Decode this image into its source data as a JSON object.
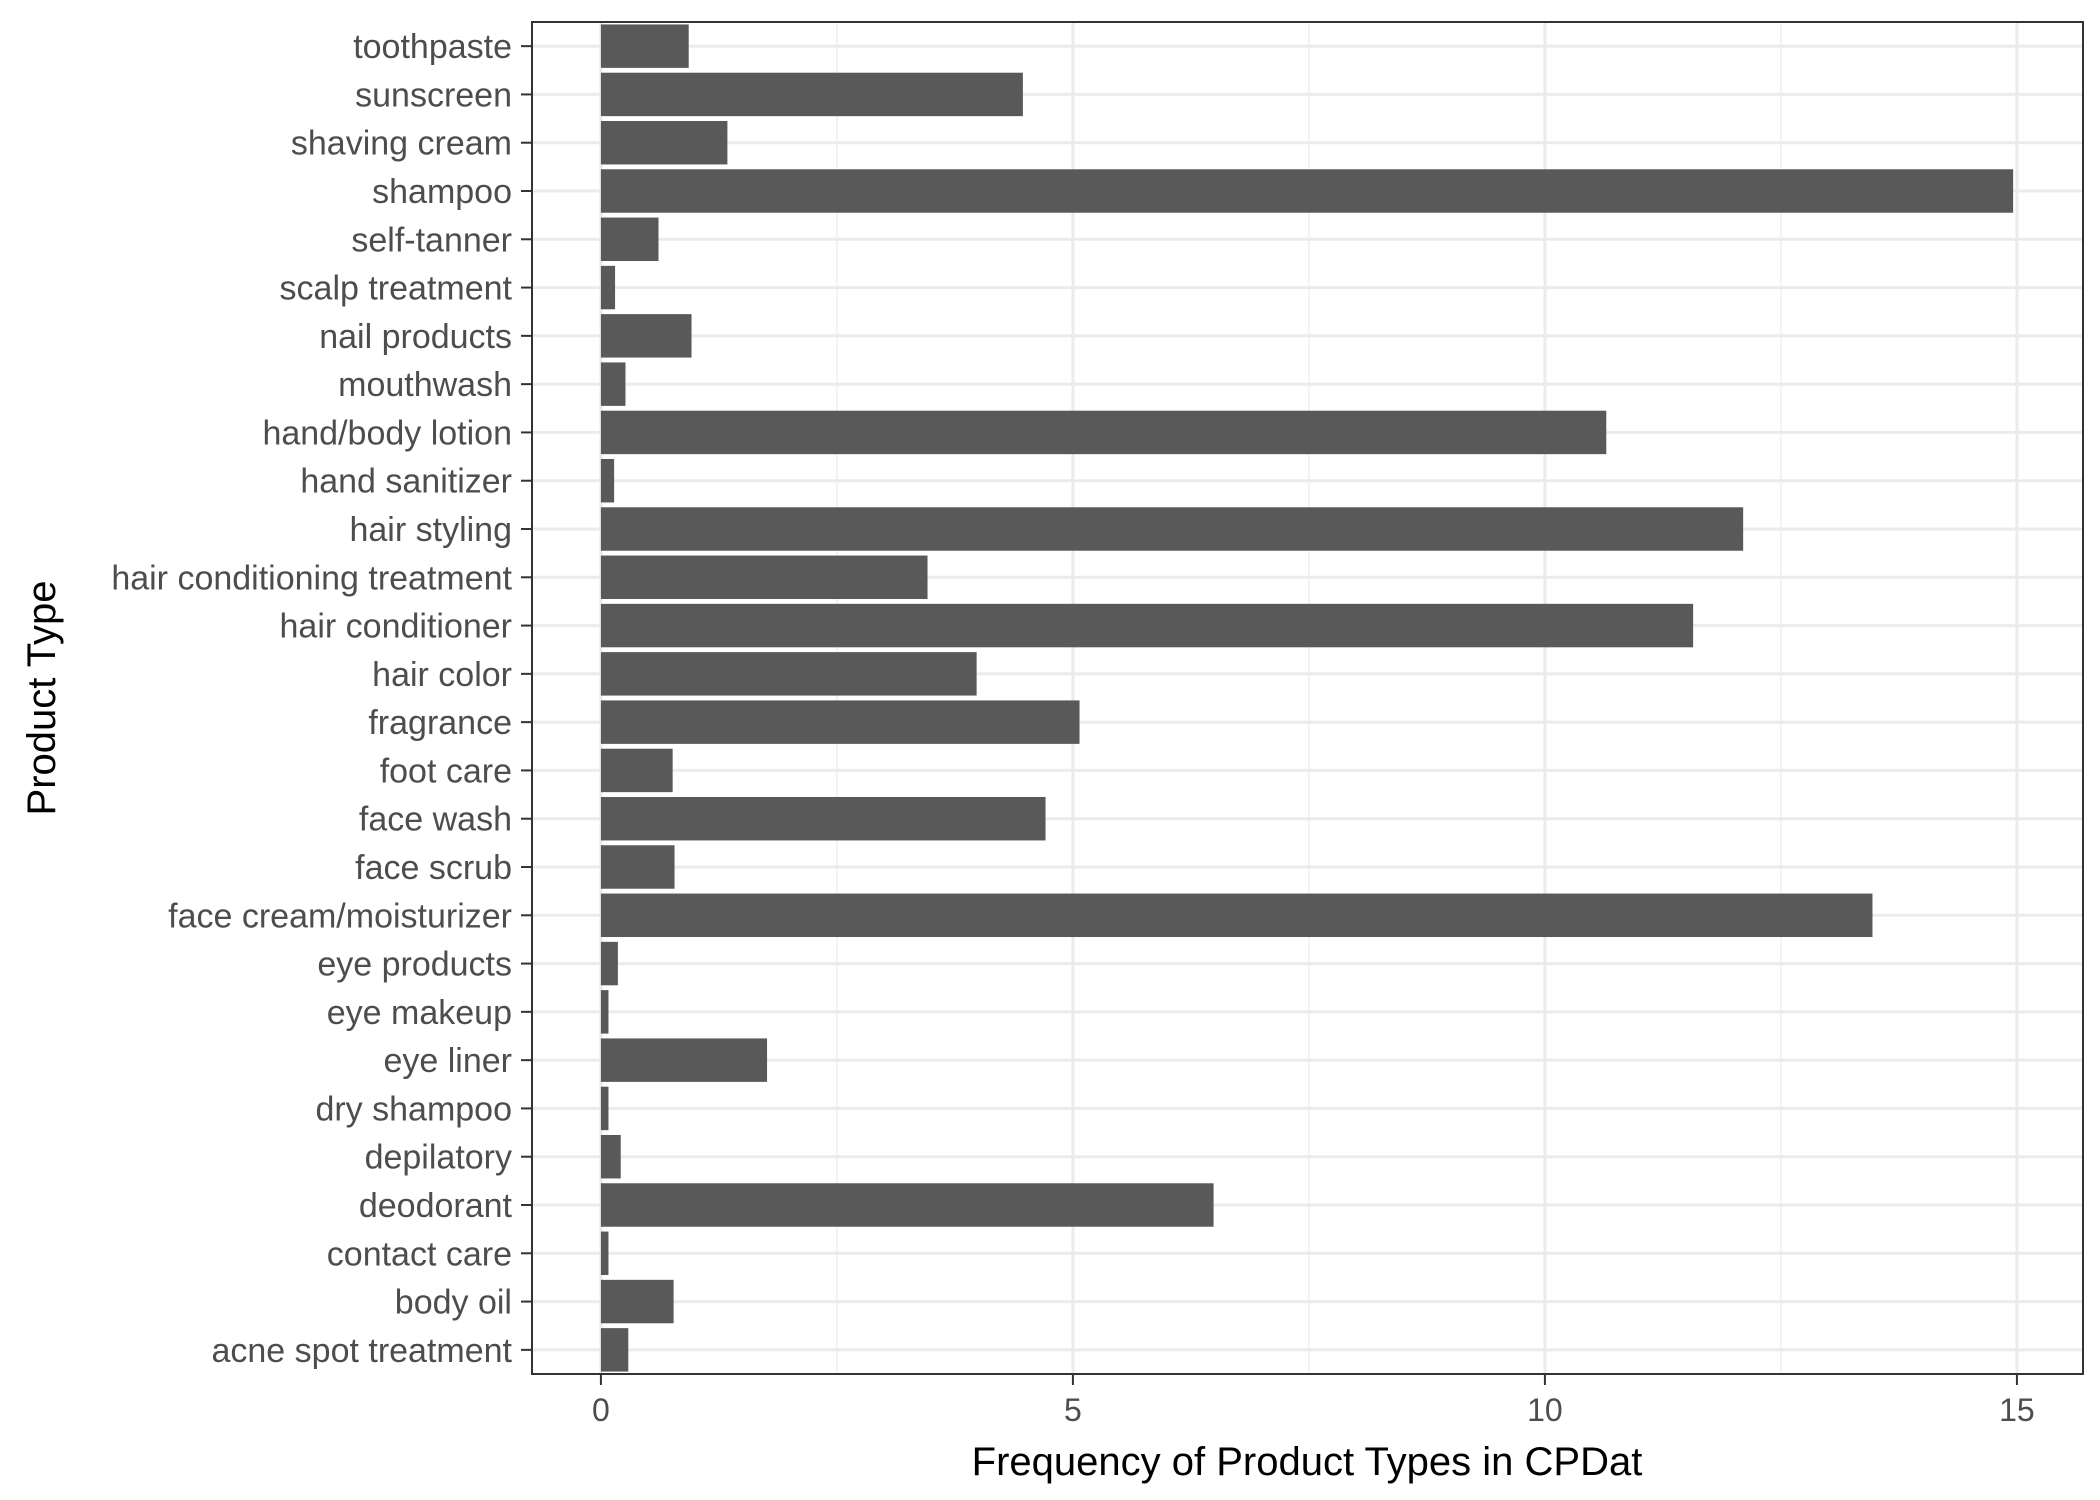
{
  "chart_data": {
    "type": "bar",
    "orientation": "horizontal",
    "xlabel": "Frequency of Product Types in CPDat",
    "ylabel": "Product Type",
    "xlim": [
      -0.73,
      15.7
    ],
    "x_ticks": [
      0,
      5,
      10,
      15
    ],
    "grid": true,
    "bar_color": "#595959",
    "categories": [
      "toothpaste",
      "sunscreen",
      "shaving cream",
      "shampoo",
      "self-tanner",
      "scalp treatment",
      "nail products",
      "mouthwash",
      "hand/body lotion",
      "hand sanitizer",
      "hair styling",
      "hair conditioning treatment",
      "hair conditioner",
      "hair color",
      "fragrance",
      "foot care",
      "face wash",
      "face scrub",
      "face cream/moisturizer",
      "eye products",
      "eye makeup",
      "eye liner",
      "dry shampoo",
      "depilatory",
      "deodorant",
      "contact care",
      "body oil",
      "acne spot treatment"
    ],
    "values": [
      0.93,
      4.47,
      1.34,
      14.96,
      0.61,
      0.15,
      0.96,
      0.26,
      10.65,
      0.14,
      12.1,
      3.46,
      11.57,
      3.98,
      5.07,
      0.76,
      4.71,
      0.78,
      13.47,
      0.18,
      0.08,
      1.76,
      0.08,
      0.21,
      6.49,
      0.08,
      0.77,
      0.29
    ]
  }
}
